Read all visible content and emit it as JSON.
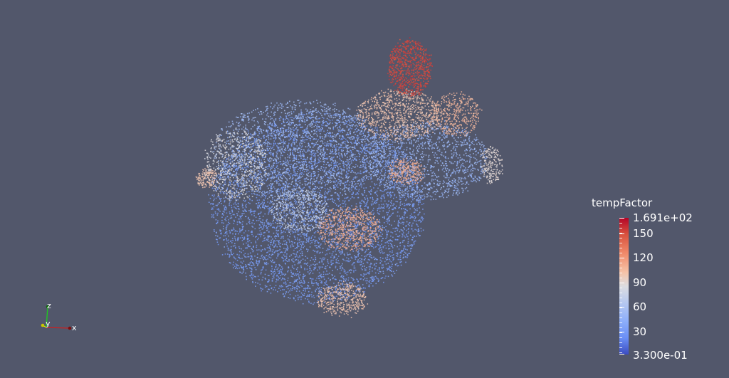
{
  "scene": {
    "background": "#52576b",
    "colormap": "Cool to Warm"
  },
  "legend": {
    "title": "tempFactor",
    "max_label": "1.691e+02",
    "min_label": "3.300e-01",
    "range": [
      0.33,
      169.1
    ],
    "ticks": [
      {
        "label": "150",
        "value": 150
      },
      {
        "label": "120",
        "value": 120
      },
      {
        "label": "90",
        "value": 90
      },
      {
        "label": "60",
        "value": 60
      },
      {
        "label": "30",
        "value": 30
      }
    ]
  },
  "axes_widget": {
    "x_label": "x",
    "y_label": "y",
    "z_label": "z",
    "x_color": "#d01e1e",
    "y_color": "#e6e600",
    "z_color": "#1ecc1e"
  }
}
